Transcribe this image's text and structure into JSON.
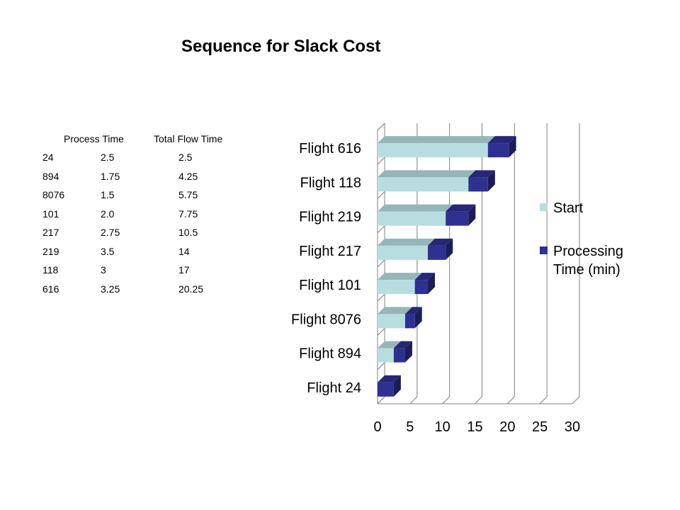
{
  "title": "Sequence for Slack Cost",
  "table": {
    "headers": [
      "Process Time",
      "Total Flow Time"
    ],
    "rows": [
      [
        "24",
        "2.5",
        "2.5"
      ],
      [
        "894",
        "1.75",
        "4.25"
      ],
      [
        "8076",
        "1.5",
        "5.75"
      ],
      [
        "101",
        "2.0",
        "7.75"
      ],
      [
        "217",
        "2.75",
        "10.5"
      ],
      [
        "219",
        "3.5",
        "14"
      ],
      [
        "118",
        "3",
        "17"
      ],
      [
        "616",
        "3.25",
        "20.25"
      ]
    ]
  },
  "chart_data": {
    "type": "bar",
    "orientation": "horizontal",
    "stacked": true,
    "title": "",
    "categories": [
      "Flight 24",
      "Flight 894",
      "Flight 8076",
      "Flight 101",
      "Flight 217",
      "Flight 219",
      "Flight 118",
      "Flight 616"
    ],
    "series": [
      {
        "name": "Start",
        "color": "#b7dde0",
        "values": [
          0,
          2.5,
          4.25,
          5.75,
          7.75,
          10.5,
          14,
          17
        ]
      },
      {
        "name": "Processing Time (min)",
        "color": "#2e3092",
        "values": [
          2.5,
          1.75,
          1.5,
          2.0,
          2.75,
          3.5,
          3,
          3.25
        ]
      }
    ],
    "xlim": [
      0,
      30
    ],
    "xticks": [
      "0",
      "5",
      "10",
      "15",
      "20",
      "25",
      "30"
    ],
    "grid": true,
    "legend": "right"
  }
}
